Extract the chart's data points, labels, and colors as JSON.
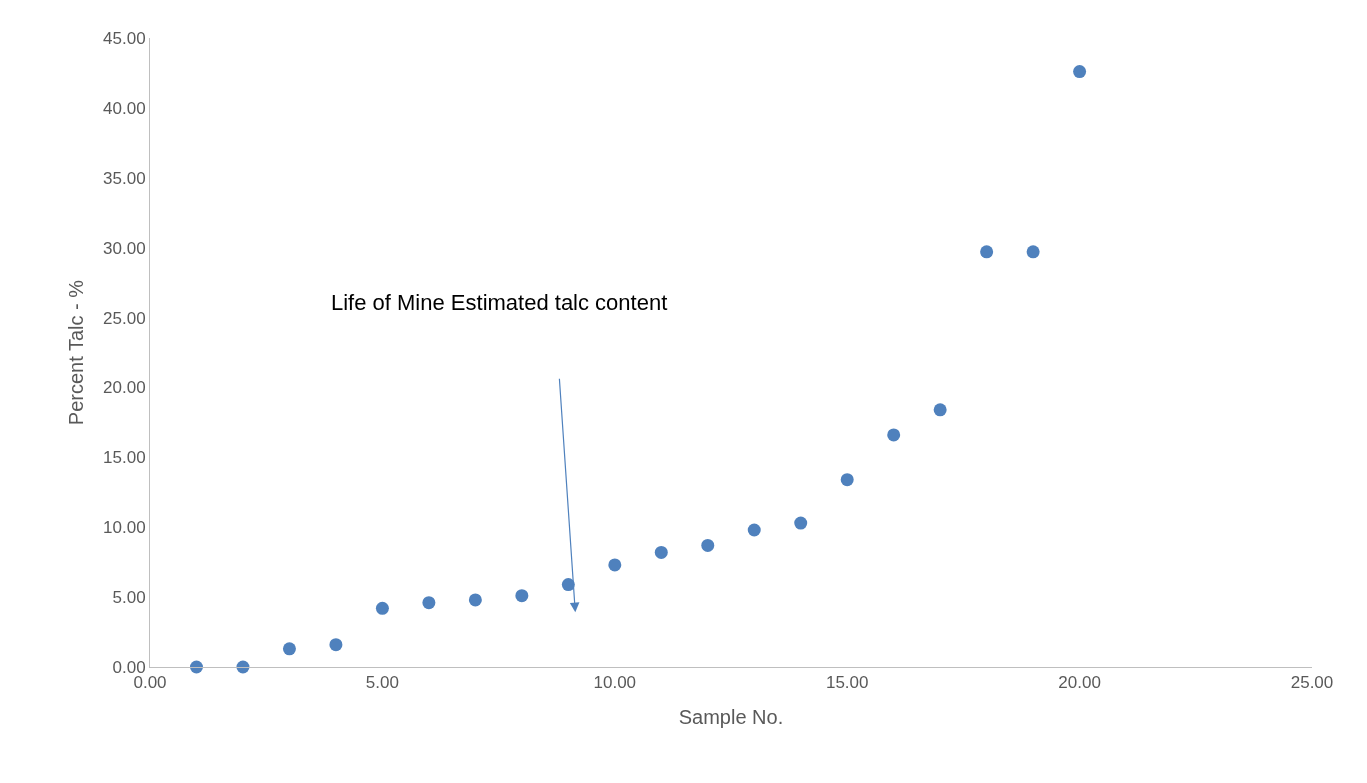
{
  "chart_data": {
    "type": "scatter",
    "xlabel": "Sample No.",
    "ylabel": "Percent Talc - %",
    "x": [
      1,
      2,
      3,
      4,
      5,
      6,
      7,
      8,
      9,
      10,
      11,
      12,
      13,
      14,
      15,
      16,
      17,
      18,
      19,
      20
    ],
    "series": [
      {
        "color": "#4f81bd",
        "values": [
          0,
          0,
          1.3,
          1.6,
          4.2,
          4.6,
          4.8,
          5.1,
          5.9,
          7.3,
          8.2,
          8.7,
          9.8,
          10.3,
          13.4,
          16.6,
          18.4,
          29.7,
          29.7,
          42.6
        ]
      }
    ],
    "xlim": [
      0,
      25
    ],
    "xticks": [
      {
        "value": 0,
        "label": "0.00"
      },
      {
        "value": 5,
        "label": "5.00"
      },
      {
        "value": 10,
        "label": "10.00"
      },
      {
        "value": 15,
        "label": "15.00"
      },
      {
        "value": 20,
        "label": "20.00"
      },
      {
        "value": 25,
        "label": "25.00"
      }
    ],
    "ylim": [
      0,
      45
    ],
    "yticks": [
      {
        "value": 0,
        "label": "0.00"
      },
      {
        "value": 5,
        "label": "5.00"
      },
      {
        "value": 10,
        "label": "10.00"
      },
      {
        "value": 15,
        "label": "15.00"
      },
      {
        "value": 20,
        "label": "20.00"
      },
      {
        "value": 25,
        "label": "25.00"
      },
      {
        "value": 30,
        "label": "30.00"
      },
      {
        "value": 35,
        "label": "35.00"
      },
      {
        "value": 40,
        "label": "40.00"
      },
      {
        "value": 45,
        "label": "45.00"
      }
    ],
    "annotations": [
      "Life of Mine Estimated talc content"
    ],
    "grid": false,
    "marker": "circle"
  }
}
